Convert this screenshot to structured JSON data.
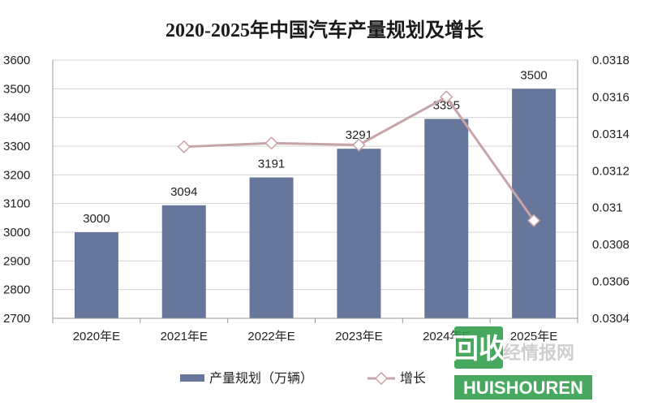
{
  "chart_data": {
    "type": "bar",
    "title": "2020-2025年中国汽车产量规划及增长",
    "categories": [
      "2020年E",
      "2021年E",
      "2022年E",
      "2023年E",
      "2024年E",
      "2025年E"
    ],
    "series": [
      {
        "name": "产量规划（万辆）",
        "type": "bar",
        "axis": "left",
        "color": "#67779c",
        "values": [
          3000,
          3094,
          3191,
          3291,
          3395,
          3500
        ]
      },
      {
        "name": "增长",
        "type": "line",
        "axis": "right",
        "color": "#c8a4a8",
        "values": [
          null,
          0.03133,
          0.03135,
          0.03134,
          0.0316,
          0.03093
        ]
      }
    ],
    "y_left": {
      "min": 2700,
      "max": 3600,
      "ticks": [
        "2700",
        "2800",
        "2900",
        "3000",
        "3100",
        "3200",
        "3300",
        "3400",
        "3500",
        "3600"
      ]
    },
    "y_right": {
      "min": 0.0304,
      "max": 0.0318,
      "ticks": [
        "0.0304",
        "0.0306",
        "0.0308",
        "0.031",
        "0.0312",
        "0.0314",
        "0.0316",
        "0.0318"
      ]
    },
    "grid": true,
    "legend_position": "bottom"
  },
  "watermark": {
    "logo_text": "回收",
    "brand_text": "HUISHOUREN",
    "site_text": "经情报网"
  }
}
